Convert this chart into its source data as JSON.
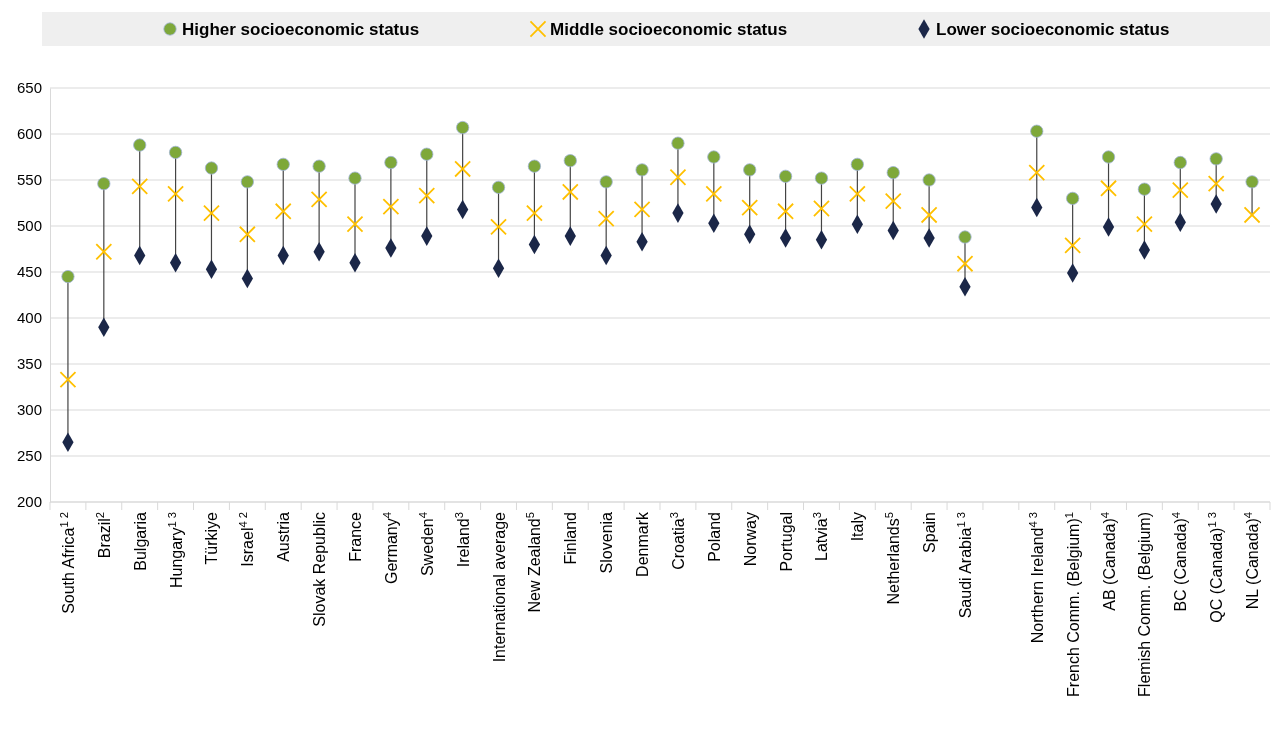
{
  "chart_data": {
    "type": "scatter",
    "legend": "top",
    "grid": "y",
    "ylim": [
      200,
      650
    ],
    "yticks": [
      200,
      250,
      300,
      350,
      400,
      450,
      500,
      550,
      600,
      650
    ],
    "categories": [
      "South Africa$^{1 2}$",
      "Brazil$^{2}$",
      "Bulgaria",
      "Hungary$^{1 3}$",
      "Türkiye",
      "Israel$^{4 2}$",
      "Austria",
      "Slovak Republic",
      "France",
      "Germany$^{4}$",
      "Sweden$^{4}$",
      "Ireland$^{3}$",
      "International average",
      "New Zealand$^{5}$",
      "Finland",
      "Slovenia",
      "Denmark",
      "Croatia$^{3}$",
      "Poland",
      "Norway",
      "Portugal",
      "Latvia$^{3}$",
      "Italy",
      "Netherlands$^{5}$",
      "Spain",
      "Saudi Arabia$^{1 3}$",
      null,
      "Northern Ireland$^{4 3}$",
      "French Comm. (Belgium)$^{1}$",
      "AB (Canada)$^{4}$",
      "Flemish Comm. (Belgium)",
      "BC (Canada)$^{4}$",
      "QC (Canada)$^{1 3}$",
      "NL (Canada)$^{4}$"
    ],
    "series": [
      {
        "name": "Higher socioeconomic status",
        "color": "#7ea83a",
        "marker": "circle",
        "values": [
          445,
          546,
          588,
          580,
          563,
          548,
          567,
          565,
          552,
          569,
          578,
          607,
          542,
          565,
          571,
          548,
          561,
          590,
          575,
          561,
          554,
          552,
          567,
          558,
          550,
          488,
          null,
          603,
          530,
          575,
          540,
          569,
          573,
          548
        ]
      },
      {
        "name": "Middle socioeconomic status",
        "color": "#ffc000",
        "marker": "cross",
        "values": [
          333,
          472,
          543,
          535,
          514,
          491,
          516,
          529,
          502,
          521,
          533,
          562,
          499,
          514,
          537,
          508,
          518,
          553,
          535,
          520,
          516,
          519,
          535,
          527,
          512,
          459,
          null,
          558,
          479,
          541,
          502,
          539,
          546,
          512
        ]
      },
      {
        "name": "Lower socioeconomic status",
        "color": "#1b2748",
        "marker": "diamond",
        "values": [
          265,
          390,
          468,
          460,
          453,
          443,
          468,
          472,
          460,
          476,
          489,
          518,
          454,
          480,
          489,
          468,
          483,
          514,
          503,
          491,
          487,
          485,
          502,
          495,
          487,
          434,
          null,
          520,
          449,
          499,
          474,
          504,
          524,
          null
        ]
      }
    ]
  }
}
